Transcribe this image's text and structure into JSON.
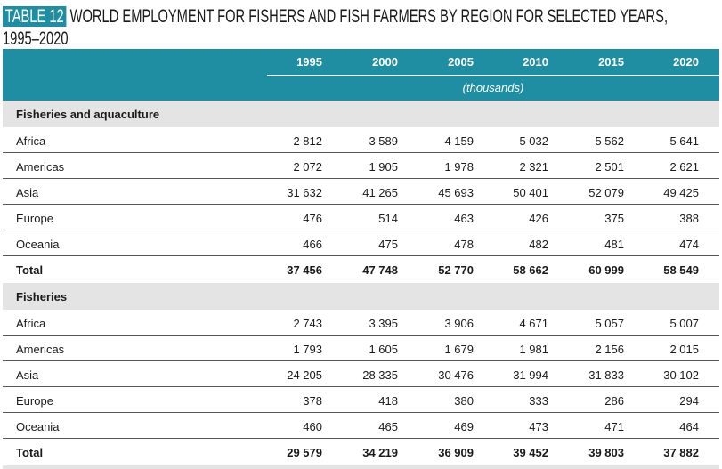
{
  "title": {
    "badge": "TABLE 12",
    "text": "WORLD EMPLOYMENT FOR FISHERS AND FISH FARMERS BY REGION FOR SELECTED YEARS, 1995–2020"
  },
  "table": {
    "years": [
      "1995",
      "2000",
      "2005",
      "2010",
      "2015",
      "2020"
    ],
    "unit": "(thousands)",
    "sections": [
      {
        "title": "Fisheries and aquaculture",
        "rows": [
          [
            "Africa",
            "2 812",
            "3 589",
            "4 159",
            "5 032",
            "5 562",
            "5 641"
          ],
          [
            "Americas",
            "2 072",
            "1 905",
            "1 978",
            "2 321",
            "2 501",
            "2 621"
          ],
          [
            "Asia",
            "31 632",
            "41 265",
            "45 693",
            "50 401",
            "52 079",
            "49 425"
          ],
          [
            "Europe",
            "476",
            "514",
            "463",
            "426",
            "375",
            "388"
          ],
          [
            "Oceania",
            "466",
            "475",
            "478",
            "482",
            "481",
            "474"
          ],
          [
            "Total",
            "37 456",
            "47 748",
            "52 770",
            "58 662",
            "60 999",
            "58 549"
          ]
        ]
      },
      {
        "title": "Fisheries",
        "rows": [
          [
            "Africa",
            "2 743",
            "3 395",
            "3 906",
            "4 671",
            "5 057",
            "5 007"
          ],
          [
            "Americas",
            "1 793",
            "1 605",
            "1 679",
            "1 981",
            "2 156",
            "2 015"
          ],
          [
            "Asia",
            "24 205",
            "28 335",
            "30 476",
            "31 994",
            "31 833",
            "30 102"
          ],
          [
            "Europe",
            "378",
            "418",
            "380",
            "333",
            "286",
            "294"
          ],
          [
            "Oceania",
            "460",
            "465",
            "469",
            "473",
            "471",
            "464"
          ],
          [
            "Total",
            "29 579",
            "34 219",
            "36 909",
            "39 452",
            "39 803",
            "37 882"
          ]
        ]
      }
    ]
  }
}
